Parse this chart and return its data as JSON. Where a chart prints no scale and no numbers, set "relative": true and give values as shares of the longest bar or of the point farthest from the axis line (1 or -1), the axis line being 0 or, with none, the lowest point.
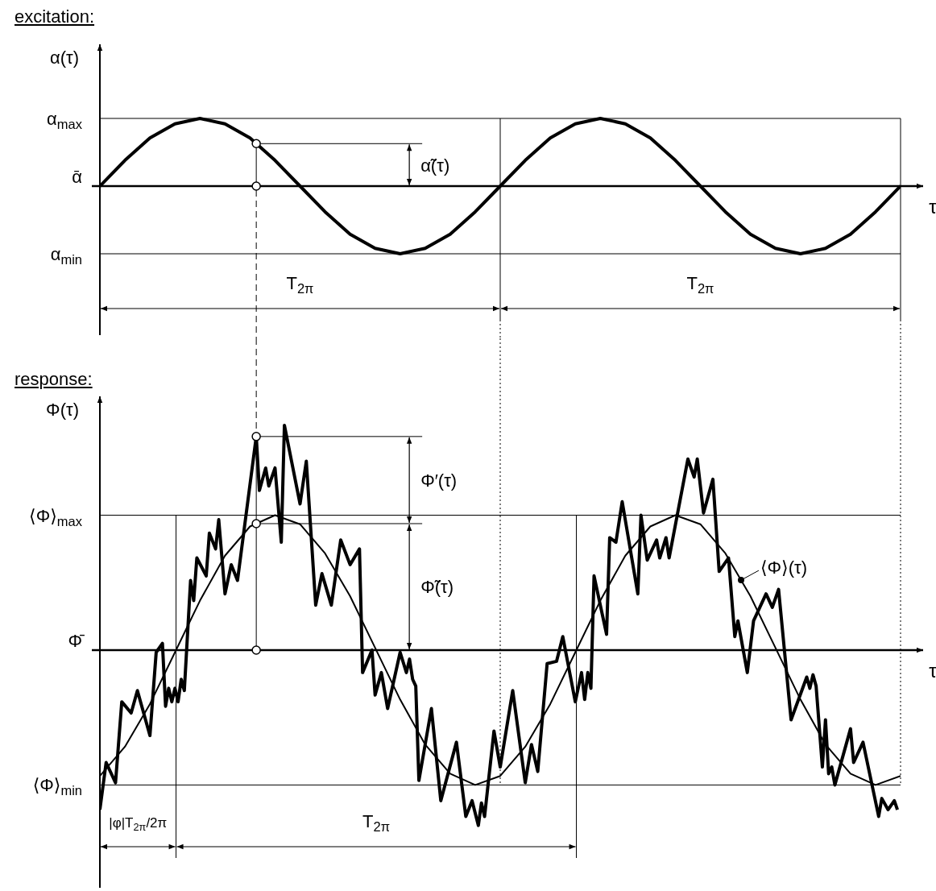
{
  "chart_data": [
    {
      "type": "line",
      "title": "excitation:",
      "ylabel": "α(τ)",
      "xlabel": "τ",
      "relative": true,
      "categories": [
        null,
        null,
        null,
        null,
        null,
        null,
        null,
        null,
        null,
        null,
        null,
        null,
        null,
        null,
        null,
        null,
        null,
        null,
        null,
        null,
        null,
        null,
        null,
        null,
        null,
        null,
        null,
        null,
        null,
        null,
        null,
        null,
        null,
        null,
        null,
        null,
        null,
        null,
        null,
        null,
        null,
        null,
        null,
        null,
        null,
        null,
        null,
        null,
        null,
        null,
        null,
        null,
        null,
        null,
        null,
        null,
        null,
        null,
        null,
        null,
        null,
        null,
        null,
        null,
        null,
        null,
        null,
        null,
        null,
        null,
        null,
        null,
        null,
        null,
        null,
        null,
        null,
        null,
        null,
        null,
        null,
        null,
        null,
        null,
        null,
        null,
        null,
        null,
        null,
        null,
        null,
        null,
        null,
        null,
        null,
        null,
        null,
        null,
        null,
        null,
        null,
        null,
        null,
        null,
        null,
        null,
        null,
        null,
        null,
        null,
        null,
        null,
        null,
        null,
        null,
        null,
        null,
        null,
        null,
        null,
        null,
        null,
        null,
        null,
        null,
        null,
        null,
        null,
        null,
        null,
        null,
        null,
        null,
        null,
        null,
        null,
        null,
        null,
        null,
        null,
        null,
        null,
        null,
        null,
        null,
        null,
        null,
        null,
        null,
        null,
        null,
        null,
        null,
        null,
        null,
        null,
        null,
        null,
        null,
        null,
        null,
        null,
        null,
        null,
        null,
        null,
        null,
        null,
        null,
        null,
        null,
        null,
        null,
        null,
        null,
        null,
        null,
        null,
        null,
        null,
        null,
        null,
        null,
        null,
        null,
        null,
        null,
        null,
        null,
        null,
        null,
        null,
        null,
        null,
        null,
        null,
        null,
        null,
        null,
        null,
        null,
        null,
        null,
        null,
        null,
        null,
        null,
        null,
        null,
        null,
        null,
        null,
        null,
        null,
        null,
        null,
        null,
        null,
        null,
        null,
        null,
        null,
        null,
        null,
        null,
        null,
        null,
        null,
        null,
        null,
        null,
        null,
        null,
        null,
        null,
        null,
        null,
        null,
        null,
        null,
        null,
        null,
        null,
        null,
        null,
        null,
        null,
        null,
        null,
        null,
        null,
        null,
        null,
        null,
        null,
        null,
        null
      ],
      "series": [
        {
          "type": "line",
          "color": "#000000",
          "values": [
            0,
            null,
            null,
            null,
            null,
            null,
            null,
            null,
            0.38,
            null,
            null,
            null,
            null,
            null,
            null,
            null,
            0.71,
            null,
            null,
            null,
            null,
            null,
            null,
            null,
            0.92,
            null,
            null,
            null,
            null,
            null,
            null,
            null,
            1,
            null,
            null,
            null,
            null,
            null,
            null,
            null,
            0.92,
            null,
            null,
            null,
            null,
            null,
            null,
            null,
            0.71,
            null,
            null,
            null,
            null,
            null,
            null,
            null,
            0.38,
            null,
            null,
            null,
            null,
            null,
            null,
            null,
            0,
            null,
            null,
            null,
            null,
            null,
            null,
            null,
            -0.38,
            null,
            null,
            null,
            null,
            null,
            null,
            null,
            -0.71,
            null,
            null,
            null,
            null,
            null,
            null,
            null,
            -0.92,
            null,
            null,
            null,
            null,
            null,
            null,
            null,
            -1,
            null,
            null,
            null,
            null,
            null,
            null,
            null,
            -0.92,
            null,
            null,
            null,
            null,
            null,
            null,
            null,
            -0.71,
            null,
            null,
            null,
            null,
            null,
            null,
            null,
            -0.38,
            null,
            null,
            null,
            null,
            null,
            null,
            null,
            0,
            null,
            null,
            null,
            null,
            null,
            null,
            null,
            0.38,
            null,
            null,
            null,
            null,
            null,
            null,
            null,
            0.71,
            null,
            null,
            null,
            null,
            null,
            null,
            null,
            0.92,
            null,
            null,
            null,
            null,
            null,
            null,
            null,
            1,
            null,
            null,
            null,
            null,
            null,
            null,
            null,
            0.92,
            null,
            null,
            null,
            null,
            null,
            null,
            null,
            0.71,
            null,
            null,
            null,
            null,
            null,
            null,
            null,
            0.38,
            null,
            null,
            null,
            null,
            null,
            null,
            null,
            0,
            null,
            null,
            null,
            null,
            null,
            null,
            null,
            -0.38,
            null,
            null,
            null,
            null,
            null,
            null,
            null,
            -0.71,
            null,
            null,
            null,
            null,
            null,
            null,
            null,
            -0.92,
            null,
            null,
            null,
            null,
            null,
            null,
            null,
            -1,
            null,
            null,
            null,
            null,
            null,
            null,
            null,
            -0.92,
            null,
            null,
            null,
            null,
            null,
            null,
            null,
            -0.71,
            null,
            null,
            null,
            null,
            null,
            null,
            null,
            -0.38,
            null,
            null,
            null,
            null,
            null,
            null,
            null,
            0
          ]
        }
      ],
      "ref_lines": [
        {
          "axis": "y",
          "value": 1,
          "label": "α$_{max}$",
          "color": "#000000"
        },
        {
          "axis": "y",
          "value": 0,
          "label": "ᾱ",
          "color": "#000000"
        },
        {
          "axis": "y",
          "value": -1,
          "label": "α$_{min}$",
          "color": "#000000"
        }
      ],
      "annotations": [
        "α̃(τ)",
        "T$_{2π}$",
        "T$_{2π}$"
      ]
    },
    {
      "type": "line",
      "title": "response:",
      "ylabel": "Φ(τ)",
      "xlabel": "τ",
      "relative": true,
      "categories": [
        null,
        null,
        null,
        null,
        null,
        null,
        null,
        null,
        null,
        null,
        null,
        null,
        null,
        null,
        null,
        null,
        null,
        null,
        null,
        null,
        null,
        null,
        null,
        null,
        null,
        null,
        null,
        null,
        null,
        null,
        null,
        null,
        null,
        null,
        null,
        null,
        null,
        null,
        null,
        null,
        null,
        null,
        null,
        null,
        null,
        null,
        null,
        null,
        null,
        null,
        null,
        null,
        null,
        null,
        null,
        null,
        null,
        null,
        null,
        null,
        null,
        null,
        null,
        null,
        null,
        null,
        null,
        null,
        null,
        null,
        null,
        null,
        null,
        null,
        null,
        null,
        null,
        null,
        null,
        null,
        null,
        null,
        null,
        null,
        null,
        null,
        null,
        null,
        null,
        null,
        null,
        null,
        null,
        null,
        null,
        null,
        null,
        null,
        null,
        null,
        null,
        null,
        null,
        null,
        null,
        null,
        null,
        null,
        null,
        null,
        null,
        null,
        null,
        null,
        null,
        null,
        null,
        null,
        null,
        null,
        null,
        null,
        null,
        null,
        null,
        null,
        null,
        null,
        null,
        null,
        null,
        null,
        null,
        null,
        null,
        null,
        null,
        null,
        null,
        null,
        null,
        null,
        null,
        null,
        null,
        null,
        null,
        null,
        null,
        null,
        null,
        null,
        null,
        null,
        null,
        null,
        null,
        null,
        null,
        null,
        null,
        null,
        null,
        null,
        null,
        null,
        null,
        null,
        null,
        null,
        null,
        null,
        null,
        null,
        null,
        null,
        null,
        null,
        null,
        null,
        null,
        null,
        null,
        null,
        null,
        null,
        null,
        null,
        null,
        null,
        null,
        null,
        null,
        null,
        null,
        null,
        null,
        null,
        null,
        null,
        null,
        null,
        null,
        null,
        null,
        null,
        null,
        null,
        null,
        null,
        null,
        null,
        null,
        null,
        null,
        null,
        null,
        null,
        null,
        null,
        null,
        null,
        null,
        null,
        null,
        null,
        null,
        null,
        null,
        null,
        null,
        null,
        null,
        null,
        null,
        null,
        null,
        null,
        null,
        null,
        null,
        null,
        null,
        null,
        null,
        null,
        null,
        null,
        null,
        null,
        null,
        null,
        null,
        null,
        null,
        null,
        null
      ],
      "series": [
        {
          "type": "line",
          "color": "#000000",
          "values": [
            -0.71,
            null,
            -0.5,
            null,
            null,
            -0.59,
            null,
            -0.23,
            null,
            null,
            -0.28,
            null,
            -0.18,
            null,
            null,
            null,
            -0.38,
            null,
            -0.01,
            null,
            0.03,
            -0.25,
            -0.17,
            -0.23,
            -0.17,
            -0.23,
            -0.13,
            -0.18,
            null,
            0.31,
            0.22,
            0.41,
            null,
            null,
            0.33,
            0.52,
            null,
            0.45,
            0.58,
            null,
            0.25,
            null,
            0.38,
            null,
            0.31,
            null,
            null,
            null,
            null,
            null,
            0.95,
            0.71,
            null,
            0.81,
            0.73,
            null,
            0.81,
            null,
            0.48,
            1,
            null,
            null,
            null,
            null,
            0.65,
            null,
            0.84,
            null,
            null,
            0.2,
            null,
            0.34,
            null,
            null,
            0.2,
            null,
            null,
            0.49,
            null,
            null,
            0.38,
            null,
            null,
            0.45,
            -0.1,
            null,
            null,
            0,
            -0.2,
            null,
            -0.1,
            null,
            -0.26,
            null,
            null,
            null,
            -0.01,
            null,
            -0.1,
            -0.04,
            -0.13,
            -0.16,
            -0.58,
            null,
            null,
            null,
            -0.26,
            null,
            null,
            -0.67,
            null,
            null,
            null,
            null,
            -0.41,
            null,
            null,
            -0.74,
            null,
            -0.67,
            null,
            -0.78,
            -0.68,
            -0.74,
            null,
            null,
            -0.36,
            null,
            -0.52,
            null,
            null,
            null,
            -0.18,
            null,
            null,
            null,
            -0.59,
            null,
            -0.42,
            null,
            -0.54,
            null,
            null,
            -0.06,
            null,
            null,
            -0.05,
            null,
            0.06,
            null,
            null,
            null,
            -0.23,
            null,
            -0.1,
            -0.22,
            -0.1,
            -0.17,
            0.33,
            null,
            null,
            null,
            0.07,
            0.5,
            null,
            0.48,
            null,
            0.66,
            null,
            null,
            null,
            null,
            0.25,
            0.6,
            null,
            0.4,
            null,
            null,
            0.49,
            0.41,
            null,
            0.5,
            0.41,
            null,
            null,
            null,
            null,
            null,
            0.85,
            null,
            0.77,
            0.85,
            null,
            0.61,
            null,
            null,
            0.76,
            null,
            0.35,
            null,
            null,
            0.41,
            null,
            0.06,
            0.13,
            null,
            null,
            -0.1,
            null,
            0.13,
            null,
            null,
            null,
            0.25,
            null,
            0.19,
            null,
            0.27,
            null,
            null,
            null,
            -0.31,
            null,
            null,
            null,
            null,
            -0.12,
            -0.17,
            -0.11,
            -0.16,
            null,
            -0.52,
            -0.31,
            -0.55,
            -0.52,
            -0.6,
            null,
            null,
            null,
            null,
            -0.35,
            -0.5,
            null,
            null,
            -0.41,
            null,
            null,
            null,
            null,
            -0.74,
            -0.66,
            null,
            -0.71,
            null,
            -0.67,
            -0.71,
            null
          ]
        },
        {
          "type": "line",
          "name": "⟨Φ⟩(τ)",
          "color": "#000000",
          "values": [
            -0.56,
            null,
            null,
            null,
            null,
            null,
            null,
            null,
            -0.43,
            null,
            null,
            null,
            null,
            null,
            null,
            null,
            -0.24,
            null,
            null,
            null,
            null,
            null,
            null,
            null,
            -0.01,
            null,
            null,
            null,
            null,
            null,
            null,
            null,
            0.22,
            null,
            null,
            null,
            null,
            null,
            null,
            null,
            0.42,
            null,
            null,
            null,
            null,
            null,
            null,
            null,
            0.55,
            null,
            null,
            null,
            null,
            null,
            null,
            null,
            0.6,
            null,
            null,
            null,
            null,
            null,
            null,
            null,
            0.56,
            null,
            null,
            null,
            null,
            null,
            null,
            null,
            0.43,
            null,
            null,
            null,
            null,
            null,
            null,
            null,
            0.24,
            null,
            null,
            null,
            null,
            null,
            null,
            null,
            0.01,
            null,
            null,
            null,
            null,
            null,
            null,
            null,
            -0.22,
            null,
            null,
            null,
            null,
            null,
            null,
            null,
            -0.42,
            null,
            null,
            null,
            null,
            null,
            null,
            null,
            -0.55,
            null,
            null,
            null,
            null,
            null,
            null,
            null,
            -0.6,
            null,
            null,
            null,
            null,
            null,
            null,
            null,
            -0.56,
            null,
            null,
            null,
            null,
            null,
            null,
            null,
            -0.43,
            null,
            null,
            null,
            null,
            null,
            null,
            null,
            -0.24,
            null,
            null,
            null,
            null,
            null,
            null,
            null,
            -0.01,
            null,
            null,
            null,
            null,
            null,
            null,
            null,
            0.22,
            null,
            null,
            null,
            null,
            null,
            null,
            null,
            0.42,
            null,
            null,
            null,
            null,
            null,
            null,
            null,
            0.55,
            null,
            null,
            null,
            null,
            null,
            null,
            null,
            0.6,
            null,
            null,
            null,
            null,
            null,
            null,
            null,
            0.56,
            null,
            null,
            null,
            null,
            null,
            null,
            null,
            0.43,
            null,
            null,
            null,
            null,
            null,
            null,
            null,
            0.24,
            null,
            null,
            null,
            null,
            null,
            null,
            null,
            0.01,
            null,
            null,
            null,
            null,
            null,
            null,
            null,
            -0.22,
            null,
            null,
            null,
            null,
            null,
            null,
            null,
            -0.42,
            null,
            null,
            null,
            null,
            null,
            null,
            null,
            -0.55,
            null,
            null,
            null,
            null,
            null,
            null,
            null,
            -0.6,
            null,
            null,
            null,
            null,
            null,
            null,
            null,
            -0.56
          ]
        }
      ],
      "ref_lines": [
        {
          "axis": "y",
          "value": 0.6,
          "label": "⟨Φ⟩$_{max}$",
          "color": "#000000"
        },
        {
          "axis": "y",
          "value": 0,
          "label": "Φ̄",
          "color": "#000000"
        },
        {
          "axis": "y",
          "value": -0.6,
          "label": "⟨Φ⟩$_{min}$",
          "color": "#000000"
        }
      ],
      "annotations": [
        "Φ′(τ)",
        "Φ̃(τ)",
        "|φ|T$_{2π}$/2π",
        "T$_{2π}$"
      ]
    }
  ]
}
